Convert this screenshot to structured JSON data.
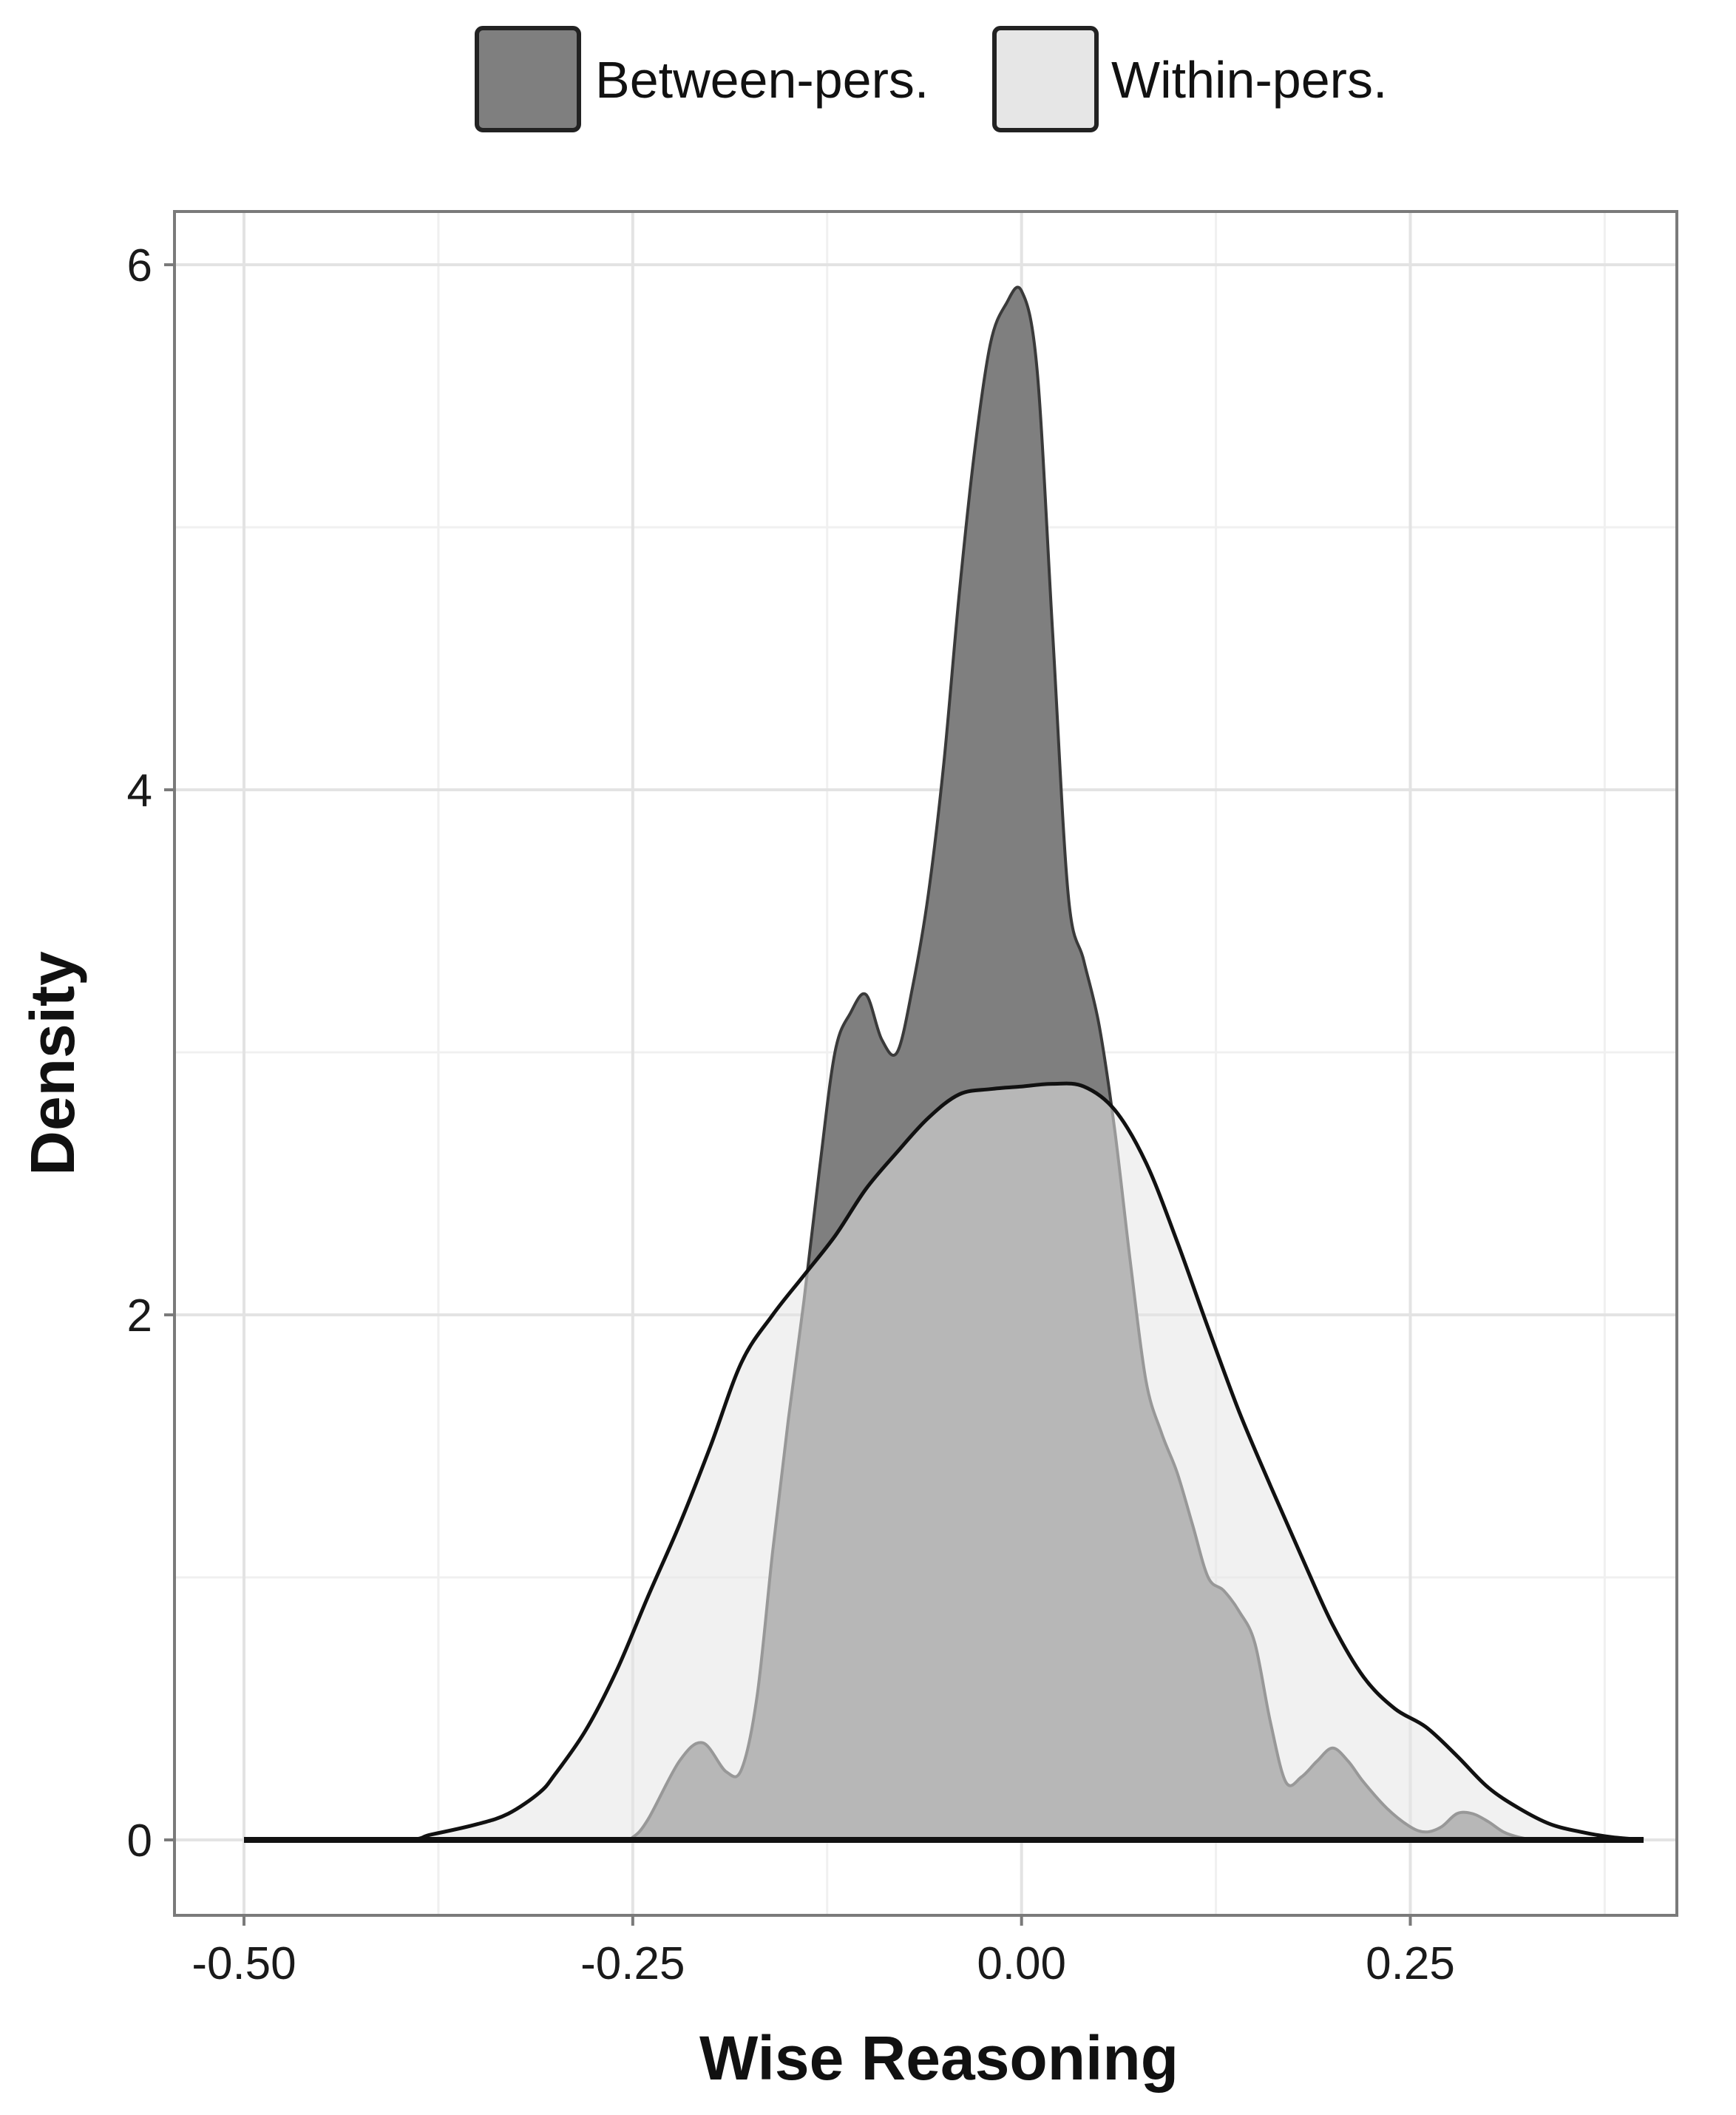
{
  "chart_data": {
    "type": "area",
    "xlabel": "Wise Reasoning",
    "ylabel": "Density",
    "xlim": [
      -0.5,
      0.4
    ],
    "ylim": [
      0,
      6.1
    ],
    "x_ticks": [
      -0.5,
      -0.25,
      0.0,
      0.25
    ],
    "x_tick_labels": [
      "-0.50",
      "-0.25",
      "0.00",
      "0.25"
    ],
    "y_ticks": [
      0,
      2,
      4,
      6
    ],
    "y_tick_labels": [
      "0",
      "2",
      "4",
      "6"
    ],
    "grid": true,
    "legend_position": "top",
    "series": [
      {
        "name": "Between-pers.",
        "color": "#7f7f7f",
        "x": [
          -0.5,
          -0.26,
          -0.25,
          -0.24,
          -0.22,
          -0.205,
          -0.19,
          -0.18,
          -0.17,
          -0.16,
          -0.15,
          -0.14,
          -0.13,
          -0.12,
          -0.11,
          -0.1,
          -0.09,
          -0.08,
          -0.07,
          -0.06,
          -0.05,
          -0.04,
          -0.03,
          -0.02,
          -0.01,
          0.0,
          0.01,
          0.02,
          0.03,
          0.04,
          0.05,
          0.06,
          0.07,
          0.08,
          0.09,
          0.1,
          0.11,
          0.12,
          0.13,
          0.14,
          0.15,
          0.16,
          0.17,
          0.18,
          0.19,
          0.2,
          0.21,
          0.22,
          0.235,
          0.25,
          0.26,
          0.27,
          0.28,
          0.29,
          0.3,
          0.31,
          0.32,
          0.33,
          0.34,
          0.35,
          0.36,
          0.4
        ],
        "values": [
          0.0,
          0.0,
          0.01,
          0.08,
          0.3,
          0.37,
          0.26,
          0.27,
          0.55,
          1.1,
          1.6,
          2.05,
          2.55,
          3.0,
          3.15,
          3.22,
          3.05,
          3.0,
          3.25,
          3.6,
          4.1,
          4.75,
          5.3,
          5.7,
          5.85,
          5.9,
          5.6,
          4.6,
          3.6,
          3.35,
          3.1,
          2.7,
          2.2,
          1.75,
          1.55,
          1.4,
          1.2,
          1.0,
          0.95,
          0.87,
          0.75,
          0.45,
          0.22,
          0.24,
          0.3,
          0.35,
          0.3,
          0.22,
          0.12,
          0.05,
          0.03,
          0.05,
          0.1,
          0.1,
          0.07,
          0.03,
          0.01,
          0.0,
          0.0,
          0.0,
          0.0,
          0.0
        ]
      },
      {
        "name": "Within-pers.",
        "color": "#e6e6e6",
        "x": [
          -0.5,
          -0.4,
          -0.38,
          -0.35,
          -0.33,
          -0.31,
          -0.3,
          -0.28,
          -0.26,
          -0.24,
          -0.22,
          -0.2,
          -0.18,
          -0.16,
          -0.14,
          -0.12,
          -0.1,
          -0.08,
          -0.06,
          -0.04,
          -0.02,
          0.0,
          0.02,
          0.04,
          0.06,
          0.08,
          0.1,
          0.12,
          0.14,
          0.16,
          0.18,
          0.2,
          0.22,
          0.24,
          0.26,
          0.28,
          0.3,
          0.32,
          0.34,
          0.36,
          0.38,
          0.4
        ],
        "values": [
          0.0,
          0.0,
          0.02,
          0.06,
          0.1,
          0.18,
          0.25,
          0.42,
          0.65,
          0.93,
          1.2,
          1.5,
          1.82,
          2.0,
          2.15,
          2.3,
          2.48,
          2.62,
          2.75,
          2.84,
          2.86,
          2.87,
          2.88,
          2.87,
          2.78,
          2.58,
          2.28,
          1.95,
          1.63,
          1.35,
          1.08,
          0.82,
          0.62,
          0.5,
          0.43,
          0.32,
          0.2,
          0.12,
          0.06,
          0.03,
          0.01,
          0.0
        ]
      }
    ]
  }
}
